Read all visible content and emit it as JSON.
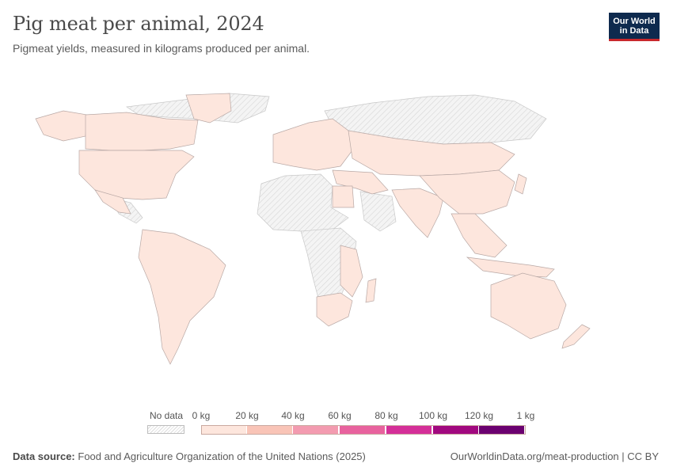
{
  "header": {
    "title": "Pig meat per animal, 2024",
    "subtitle": "Pigmeat yields, measured in kilograms produced per animal.",
    "logo_line1": "Our World",
    "logo_line2": "in Data"
  },
  "legend": {
    "no_data_label": "No data",
    "tick_labels": [
      "0 kg",
      "20 kg",
      "40 kg",
      "60 kg",
      "80 kg",
      "100 kg",
      "120 kg",
      "1 kg"
    ],
    "bin_colors": [
      "#fde6dd",
      "#f9c4b7",
      "#f39bb0",
      "#e8629e",
      "#d42f98",
      "#a1087f",
      "#6b0070"
    ]
  },
  "map": {
    "data_fill": "#fde6dd",
    "no_data_fill": "#efefef",
    "border_color": "#b8a8a5",
    "regions_with_data": [
      "North America",
      "South America",
      "Europe",
      "Russia",
      "Central Asia",
      "Middle East",
      "South Asia",
      "East Asia",
      "Southeast Asia",
      "Australia",
      "New Zealand",
      "Southern Africa",
      "East Africa coast",
      "Egypt",
      "Greenland"
    ],
    "regions_no_data": [
      "Arctic Canada",
      "Siberia",
      "Saharan Africa",
      "Central Africa",
      "Arabian Peninsula"
    ]
  },
  "footer": {
    "source_label": "Data source:",
    "source_text": "Food and Agriculture Organization of the United Nations (2025)",
    "url_text": "OurWorldinData.org/meat-production | CC BY"
  }
}
